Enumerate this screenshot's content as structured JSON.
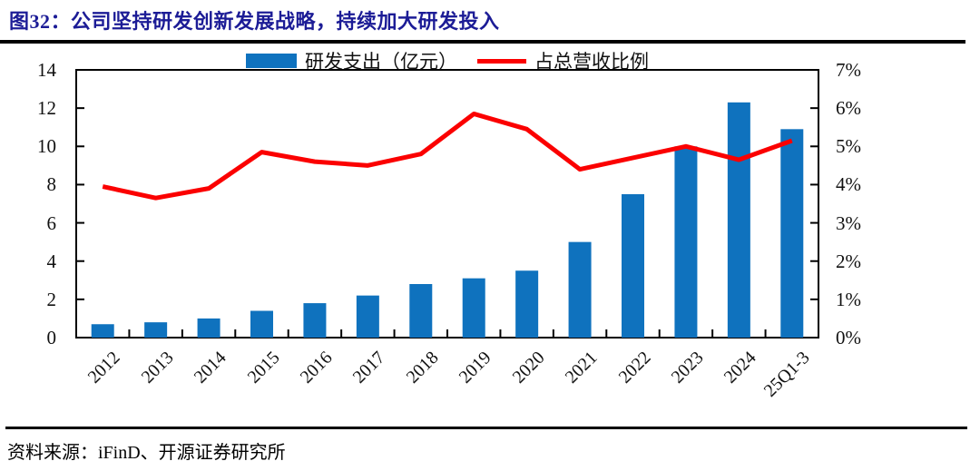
{
  "header": {
    "title": "图32：公司坚持研发创新发展战略，持续加大研发投入"
  },
  "legend": {
    "bar_label": "研发支出（亿元）",
    "line_label": "占总营收比例"
  },
  "footer": {
    "source": "资料来源：iFinD、开源证券研究所"
  },
  "colors": {
    "bar": "#0F72BE",
    "line": "#FB0000",
    "title": "#1C1C96",
    "axis": "#000000"
  },
  "chart_data": {
    "type": "bar",
    "subtype": "combo dual-axis: bars on left axis, line on right axis",
    "title": "图32：公司坚持研发创新发展战略，持续加大研发投入",
    "categories": [
      "2012",
      "2013",
      "2014",
      "2015",
      "2016",
      "2017",
      "2018",
      "2019",
      "2020",
      "2021",
      "2022",
      "2023",
      "2024",
      "25Q1-3"
    ],
    "series": [
      {
        "name": "研发支出（亿元）",
        "type": "bar",
        "y_axis": "left",
        "unit": "亿元",
        "values": [
          0.7,
          0.8,
          1.0,
          1.4,
          1.8,
          2.2,
          2.8,
          3.1,
          3.5,
          5.0,
          7.5,
          10.0,
          12.3,
          10.9
        ]
      },
      {
        "name": "占总营收比例",
        "type": "line",
        "y_axis": "right",
        "unit": "%",
        "values": [
          3.95,
          3.65,
          3.9,
          4.85,
          4.6,
          4.5,
          4.8,
          5.85,
          5.45,
          4.4,
          4.7,
          5.0,
          4.65,
          5.15
        ]
      }
    ],
    "left_axis": {
      "min": 0,
      "max": 14,
      "tick_step": 2,
      "tick_labels": [
        "0",
        "2",
        "4",
        "6",
        "8",
        "10",
        "12",
        "14"
      ]
    },
    "right_axis": {
      "min": 0,
      "max": 7,
      "tick_step": 1,
      "tick_labels": [
        "0%",
        "1%",
        "2%",
        "3%",
        "4%",
        "5%",
        "6%",
        "7%"
      ]
    },
    "legend_position": "top-center",
    "grid": false,
    "frame": "full box, inward ticks",
    "x_label_rotation_deg": -45
  }
}
